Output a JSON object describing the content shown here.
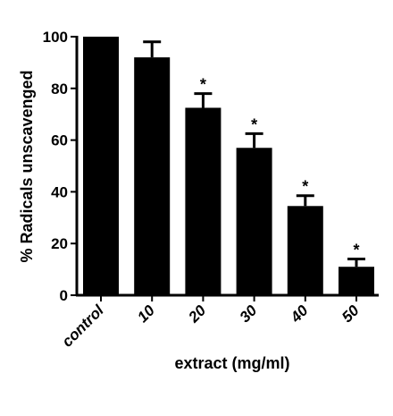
{
  "chart_data": {
    "type": "bar",
    "title": "",
    "xlabel": "extract (mg/ml)",
    "ylabel": "% Radicals unscavenged",
    "categories": [
      "control",
      "10",
      "20",
      "30",
      "40",
      "50"
    ],
    "values": [
      100,
      92,
      72.5,
      57,
      34.5,
      11
    ],
    "errors": [
      0,
      6,
      5.5,
      5.5,
      4,
      3
    ],
    "annotations": [
      "",
      "",
      "*",
      "*",
      "*",
      "*"
    ],
    "ylim": [
      0,
      100
    ],
    "yticks": [
      "0",
      "20",
      "40",
      "60",
      "80",
      "100"
    ],
    "grid": false,
    "legend": "none",
    "bar_color": "#000000"
  }
}
